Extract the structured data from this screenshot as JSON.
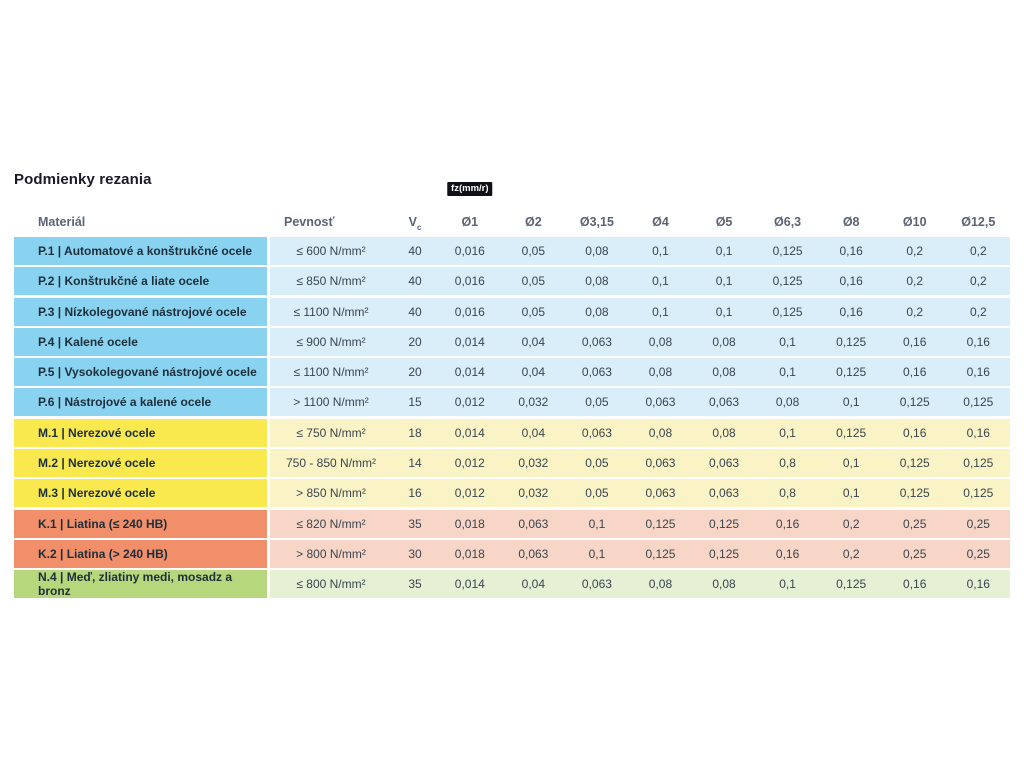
{
  "title": "Podmienky rezania",
  "table": {
    "headers": {
      "material": "Materiál",
      "strength": "Pevnosť",
      "vc_main": "V",
      "vc_sub": "c",
      "fz_badge": "fz(mm/r)",
      "diameters": [
        "Ø1",
        "Ø2",
        "Ø3,15",
        "Ø4",
        "Ø5",
        "Ø6,3",
        "Ø8",
        "Ø10",
        "Ø12,5"
      ]
    },
    "colors": {
      "blue": {
        "label": "#89d3f0",
        "cell": "#d9eef9"
      },
      "yellow": {
        "label": "#f9e94e",
        "cell": "#faf3c5"
      },
      "salmon": {
        "label": "#f08f69",
        "cell": "#f8d6c7"
      },
      "green": {
        "label": "#b7d77d",
        "cell": "#e5f0d5"
      }
    },
    "rows": [
      {
        "group": "blue",
        "material": "P.1 | Automatové a konštrukčné ocele",
        "strength": "≤ 600 N/mm²",
        "vc": "40",
        "fz": [
          "0,016",
          "0,05",
          "0,08",
          "0,1",
          "0,1",
          "0,125",
          "0,16",
          "0,2",
          "0,2"
        ]
      },
      {
        "group": "blue",
        "material": "P.2 | Konštrukčné a liate ocele",
        "strength": "≤ 850 N/mm²",
        "vc": "40",
        "fz": [
          "0,016",
          "0,05",
          "0,08",
          "0,1",
          "0,1",
          "0,125",
          "0,16",
          "0,2",
          "0,2"
        ]
      },
      {
        "group": "blue",
        "material": "P.3 | Nízkolegované nástrojové ocele",
        "strength": "≤ 1100 N/mm²",
        "vc": "40",
        "fz": [
          "0,016",
          "0,05",
          "0,08",
          "0,1",
          "0,1",
          "0,125",
          "0,16",
          "0,2",
          "0,2"
        ]
      },
      {
        "group": "blue",
        "material": "P.4 | Kalené ocele",
        "strength": "≤ 900 N/mm²",
        "vc": "20",
        "fz": [
          "0,014",
          "0,04",
          "0,063",
          "0,08",
          "0,08",
          "0,1",
          "0,125",
          "0,16",
          "0,16"
        ]
      },
      {
        "group": "blue",
        "material": "P.5 | Vysokolegované nástrojové ocele",
        "strength": "≤ 1100 N/mm²",
        "vc": "20",
        "fz": [
          "0,014",
          "0,04",
          "0,063",
          "0,08",
          "0,08",
          "0,1",
          "0,125",
          "0,16",
          "0,16"
        ]
      },
      {
        "group": "blue",
        "material": "P.6 | Nástrojové a kalené ocele",
        "strength": "> 1100 N/mm²",
        "vc": "15",
        "fz": [
          "0,012",
          "0,032",
          "0,05",
          "0,063",
          "0,063",
          "0,08",
          "0,1",
          "0,125",
          "0,125"
        ]
      },
      {
        "group": "yellow",
        "material": "M.1 | Nerezové ocele",
        "strength": "≤ 750 N/mm²",
        "vc": "18",
        "fz": [
          "0,014",
          "0,04",
          "0,063",
          "0,08",
          "0,08",
          "0,1",
          "0,125",
          "0,16",
          "0,16"
        ]
      },
      {
        "group": "yellow",
        "material": "M.2 | Nerezové ocele",
        "strength": "750 - 850 N/mm²",
        "vc": "14",
        "fz": [
          "0,012",
          "0,032",
          "0,05",
          "0,063",
          "0,063",
          "0,8",
          "0,1",
          "0,125",
          "0,125"
        ]
      },
      {
        "group": "yellow",
        "material": "M.3 | Nerezové ocele",
        "strength": "> 850 N/mm²",
        "vc": "16",
        "fz": [
          "0,012",
          "0,032",
          "0,05",
          "0,063",
          "0,063",
          "0,8",
          "0,1",
          "0,125",
          "0,125"
        ]
      },
      {
        "group": "salmon",
        "material": "K.1 | Liatina (≤ 240 HB)",
        "strength": "≤ 820 N/mm²",
        "vc": "35",
        "fz": [
          "0,018",
          "0,063",
          "0,1",
          "0,125",
          "0,125",
          "0,16",
          "0,2",
          "0,25",
          "0,25"
        ]
      },
      {
        "group": "salmon",
        "material": "K.2 | Liatina (> 240 HB)",
        "strength": "> 800 N/mm²",
        "vc": "30",
        "fz": [
          "0,018",
          "0,063",
          "0,1",
          "0,125",
          "0,125",
          "0,16",
          "0,2",
          "0,25",
          "0,25"
        ]
      },
      {
        "group": "green",
        "material": "N.4 | Meď, zliatiny medi, mosadz a bronz",
        "strength": "≤ 800 N/mm²",
        "vc": "35",
        "fz": [
          "0,014",
          "0,04",
          "0,063",
          "0,08",
          "0,08",
          "0,1",
          "0,125",
          "0,16",
          "0,16"
        ]
      }
    ]
  }
}
